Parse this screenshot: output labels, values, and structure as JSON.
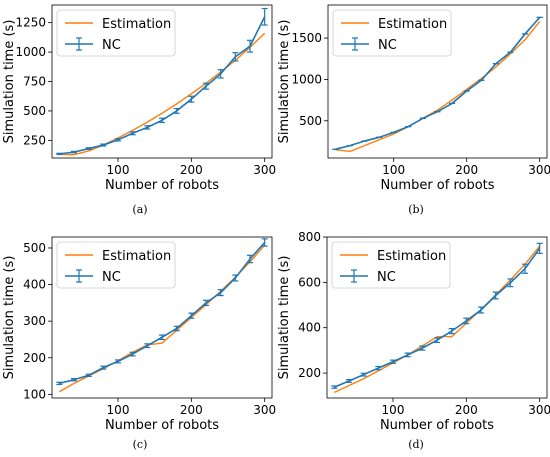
{
  "colors": {
    "estimation": "#ff7f0e",
    "nc": "#1f77b4"
  },
  "chart_data": [
    {
      "type": "line",
      "caption": "(a)",
      "xlabel": "Number of robots",
      "ylabel": "Simulation time (s)",
      "xlim": [
        10,
        310
      ],
      "ylim": [
        100,
        1400
      ],
      "xticks": [
        100,
        200,
        300
      ],
      "yticks": [
        250,
        500,
        750,
        1000,
        1250
      ],
      "legend": "top-left",
      "series": [
        {
          "name": "Estimation",
          "style": "line",
          "x": [
            20,
            40,
            60,
            80,
            100,
            120,
            140,
            160,
            180,
            200,
            220,
            240,
            260,
            280,
            300
          ],
          "y": [
            130,
            128,
            160,
            210,
            270,
            335,
            405,
            480,
            560,
            645,
            735,
            830,
            930,
            1040,
            1160
          ]
        },
        {
          "name": "NC",
          "style": "errorbar",
          "x": [
            20,
            40,
            60,
            80,
            100,
            120,
            140,
            160,
            180,
            200,
            220,
            240,
            260,
            280,
            300
          ],
          "y": [
            135,
            150,
            180,
            210,
            255,
            310,
            360,
            420,
            500,
            600,
            710,
            815,
            960,
            1050,
            1300
          ],
          "err": [
            5,
            6,
            7,
            8,
            10,
            12,
            14,
            18,
            20,
            25,
            25,
            35,
            35,
            50,
            70
          ]
        }
      ]
    },
    {
      "type": "line",
      "caption": "(b)",
      "xlabel": "Number of robots",
      "ylabel": "Simulation time (s)",
      "xlim": [
        10,
        310
      ],
      "ylim": [
        50,
        1900
      ],
      "xticks": [
        100,
        200,
        300
      ],
      "yticks": [
        500,
        1000,
        1500
      ],
      "legend": "top-left",
      "series": [
        {
          "name": "Estimation",
          "style": "line",
          "x": [
            20,
            40,
            60,
            80,
            100,
            120,
            140,
            160,
            180,
            200,
            220,
            240,
            260,
            280,
            300
          ],
          "y": [
            150,
            130,
            200,
            270,
            340,
            430,
            530,
            630,
            750,
            880,
            1010,
            1150,
            1310,
            1480,
            1700
          ]
        },
        {
          "name": "NC",
          "style": "errorbar",
          "x": [
            20,
            40,
            60,
            80,
            100,
            120,
            140,
            160,
            180,
            200,
            220,
            240,
            260,
            280,
            300
          ],
          "y": [
            155,
            200,
            255,
            300,
            360,
            430,
            530,
            610,
            710,
            860,
            990,
            1190,
            1330,
            1550,
            1750
          ]
        },
        {
          "name": "",
          "style": "hidden",
          "x": [],
          "y": []
        }
      ]
    },
    {
      "type": "line",
      "caption": "(c)",
      "xlabel": "Number of robots",
      "ylabel": "Simulation time (s)",
      "xlim": [
        10,
        310
      ],
      "ylim": [
        90,
        530
      ],
      "xticks": [
        100,
        200,
        300
      ],
      "yticks": [
        100,
        200,
        300,
        400,
        500
      ],
      "legend": "top-left",
      "series": [
        {
          "name": "Estimation",
          "style": "line",
          "x": [
            20,
            40,
            60,
            80,
            100,
            120,
            140,
            160,
            180,
            200,
            220,
            240,
            260,
            280,
            300
          ],
          "y": [
            107,
            130,
            150,
            170,
            192,
            215,
            235,
            240,
            275,
            310,
            345,
            382,
            420,
            462,
            508
          ]
        },
        {
          "name": "NC",
          "style": "errorbar",
          "x": [
            20,
            40,
            60,
            80,
            100,
            120,
            140,
            160,
            180,
            200,
            220,
            240,
            260,
            280,
            300
          ],
          "y": [
            130,
            140,
            152,
            173,
            190,
            210,
            233,
            256,
            280,
            315,
            350,
            378,
            418,
            470,
            515
          ],
          "err": [
            3,
            3,
            3,
            4,
            4,
            5,
            5,
            6,
            6,
            7,
            7,
            8,
            8,
            10,
            10
          ]
        }
      ]
    },
    {
      "type": "line",
      "caption": "(d)",
      "xlabel": "Number of robots",
      "ylabel": "Simulation time (s)",
      "xlim": [
        10,
        310
      ],
      "ylim": [
        90,
        800
      ],
      "xticks": [
        100,
        200,
        300
      ],
      "yticks": [
        200,
        400,
        600,
        800
      ],
      "legend": "top-left",
      "series": [
        {
          "name": "Estimation",
          "style": "line",
          "x": [
            20,
            40,
            60,
            80,
            100,
            120,
            140,
            160,
            170,
            180,
            200,
            220,
            240,
            260,
            280,
            300
          ],
          "y": [
            115,
            145,
            175,
            210,
            245,
            280,
            320,
            360,
            362,
            360,
            420,
            480,
            545,
            610,
            680,
            760
          ]
        },
        {
          "name": "NC",
          "style": "errorbar",
          "x": [
            20,
            40,
            60,
            80,
            100,
            120,
            140,
            160,
            180,
            200,
            220,
            240,
            260,
            280,
            300
          ],
          "y": [
            138,
            165,
            193,
            222,
            250,
            280,
            310,
            345,
            385,
            430,
            478,
            542,
            598,
            660,
            750
          ],
          "err": [
            5,
            6,
            6,
            7,
            7,
            8,
            9,
            10,
            11,
            12,
            13,
            15,
            17,
            20,
            22
          ]
        }
      ]
    }
  ]
}
